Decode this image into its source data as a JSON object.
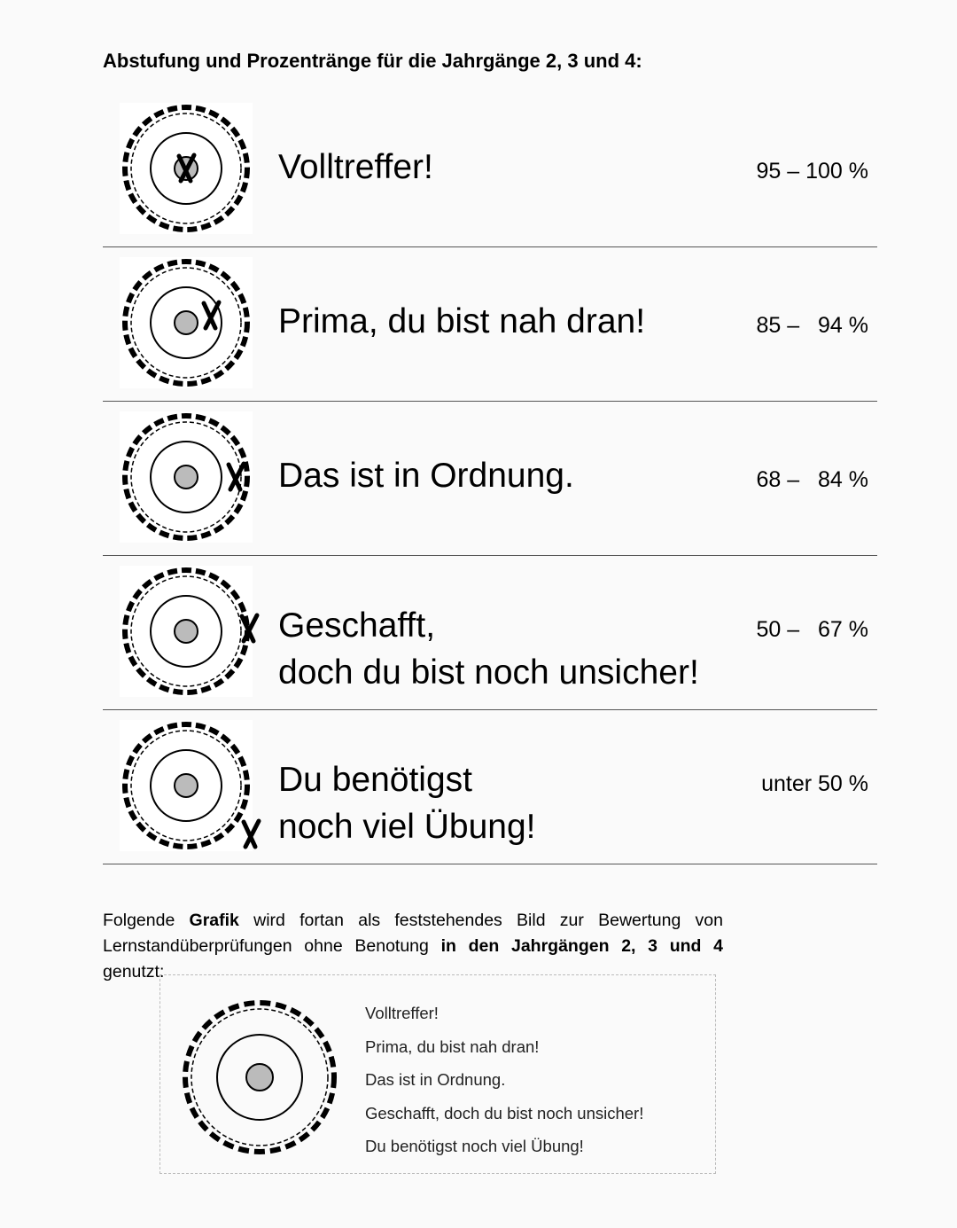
{
  "heading": "Abstufung und Prozentränge für die Jahrgänge 2, 3 und 4:",
  "rows": [
    {
      "title_line1": "Volltreffer!",
      "title_line2": "",
      "range": "95 – 100 %",
      "mark": "center"
    },
    {
      "title_line1": "Prima, du bist nah dran!",
      "title_line2": "",
      "range": "85 –   94 %",
      "mark": "inner-ring"
    },
    {
      "title_line1": "Das ist in Ordnung.",
      "title_line2": "",
      "range": "68 –   84 %",
      "mark": "middle-ring"
    },
    {
      "title_line1": "Geschafft,",
      "title_line2": "doch du bist noch unsicher!",
      "range": "50 –   67 %",
      "mark": "outer-ring"
    },
    {
      "title_line1": "Du benötigst",
      "title_line2": "noch viel Übung!",
      "range": "unter 50 %",
      "mark": "outside"
    }
  ],
  "paragraph": {
    "p1": "Folgende ",
    "b1": "Grafik",
    "p2": " wird fortan als feststehendes Bild zur Bewertung von Lernstandüberprüfungen ohne Benotung ",
    "b2": "in den Jahrgängen 2, 3 und 4",
    "p3": " genutzt:"
  },
  "legend": [
    "Volltreffer!",
    "Prima, du bist nah dran!",
    "Das ist in Ordnung.",
    "Geschafft, doch du bist noch unsicher!",
    "Du benötigst noch viel Übung!"
  ]
}
